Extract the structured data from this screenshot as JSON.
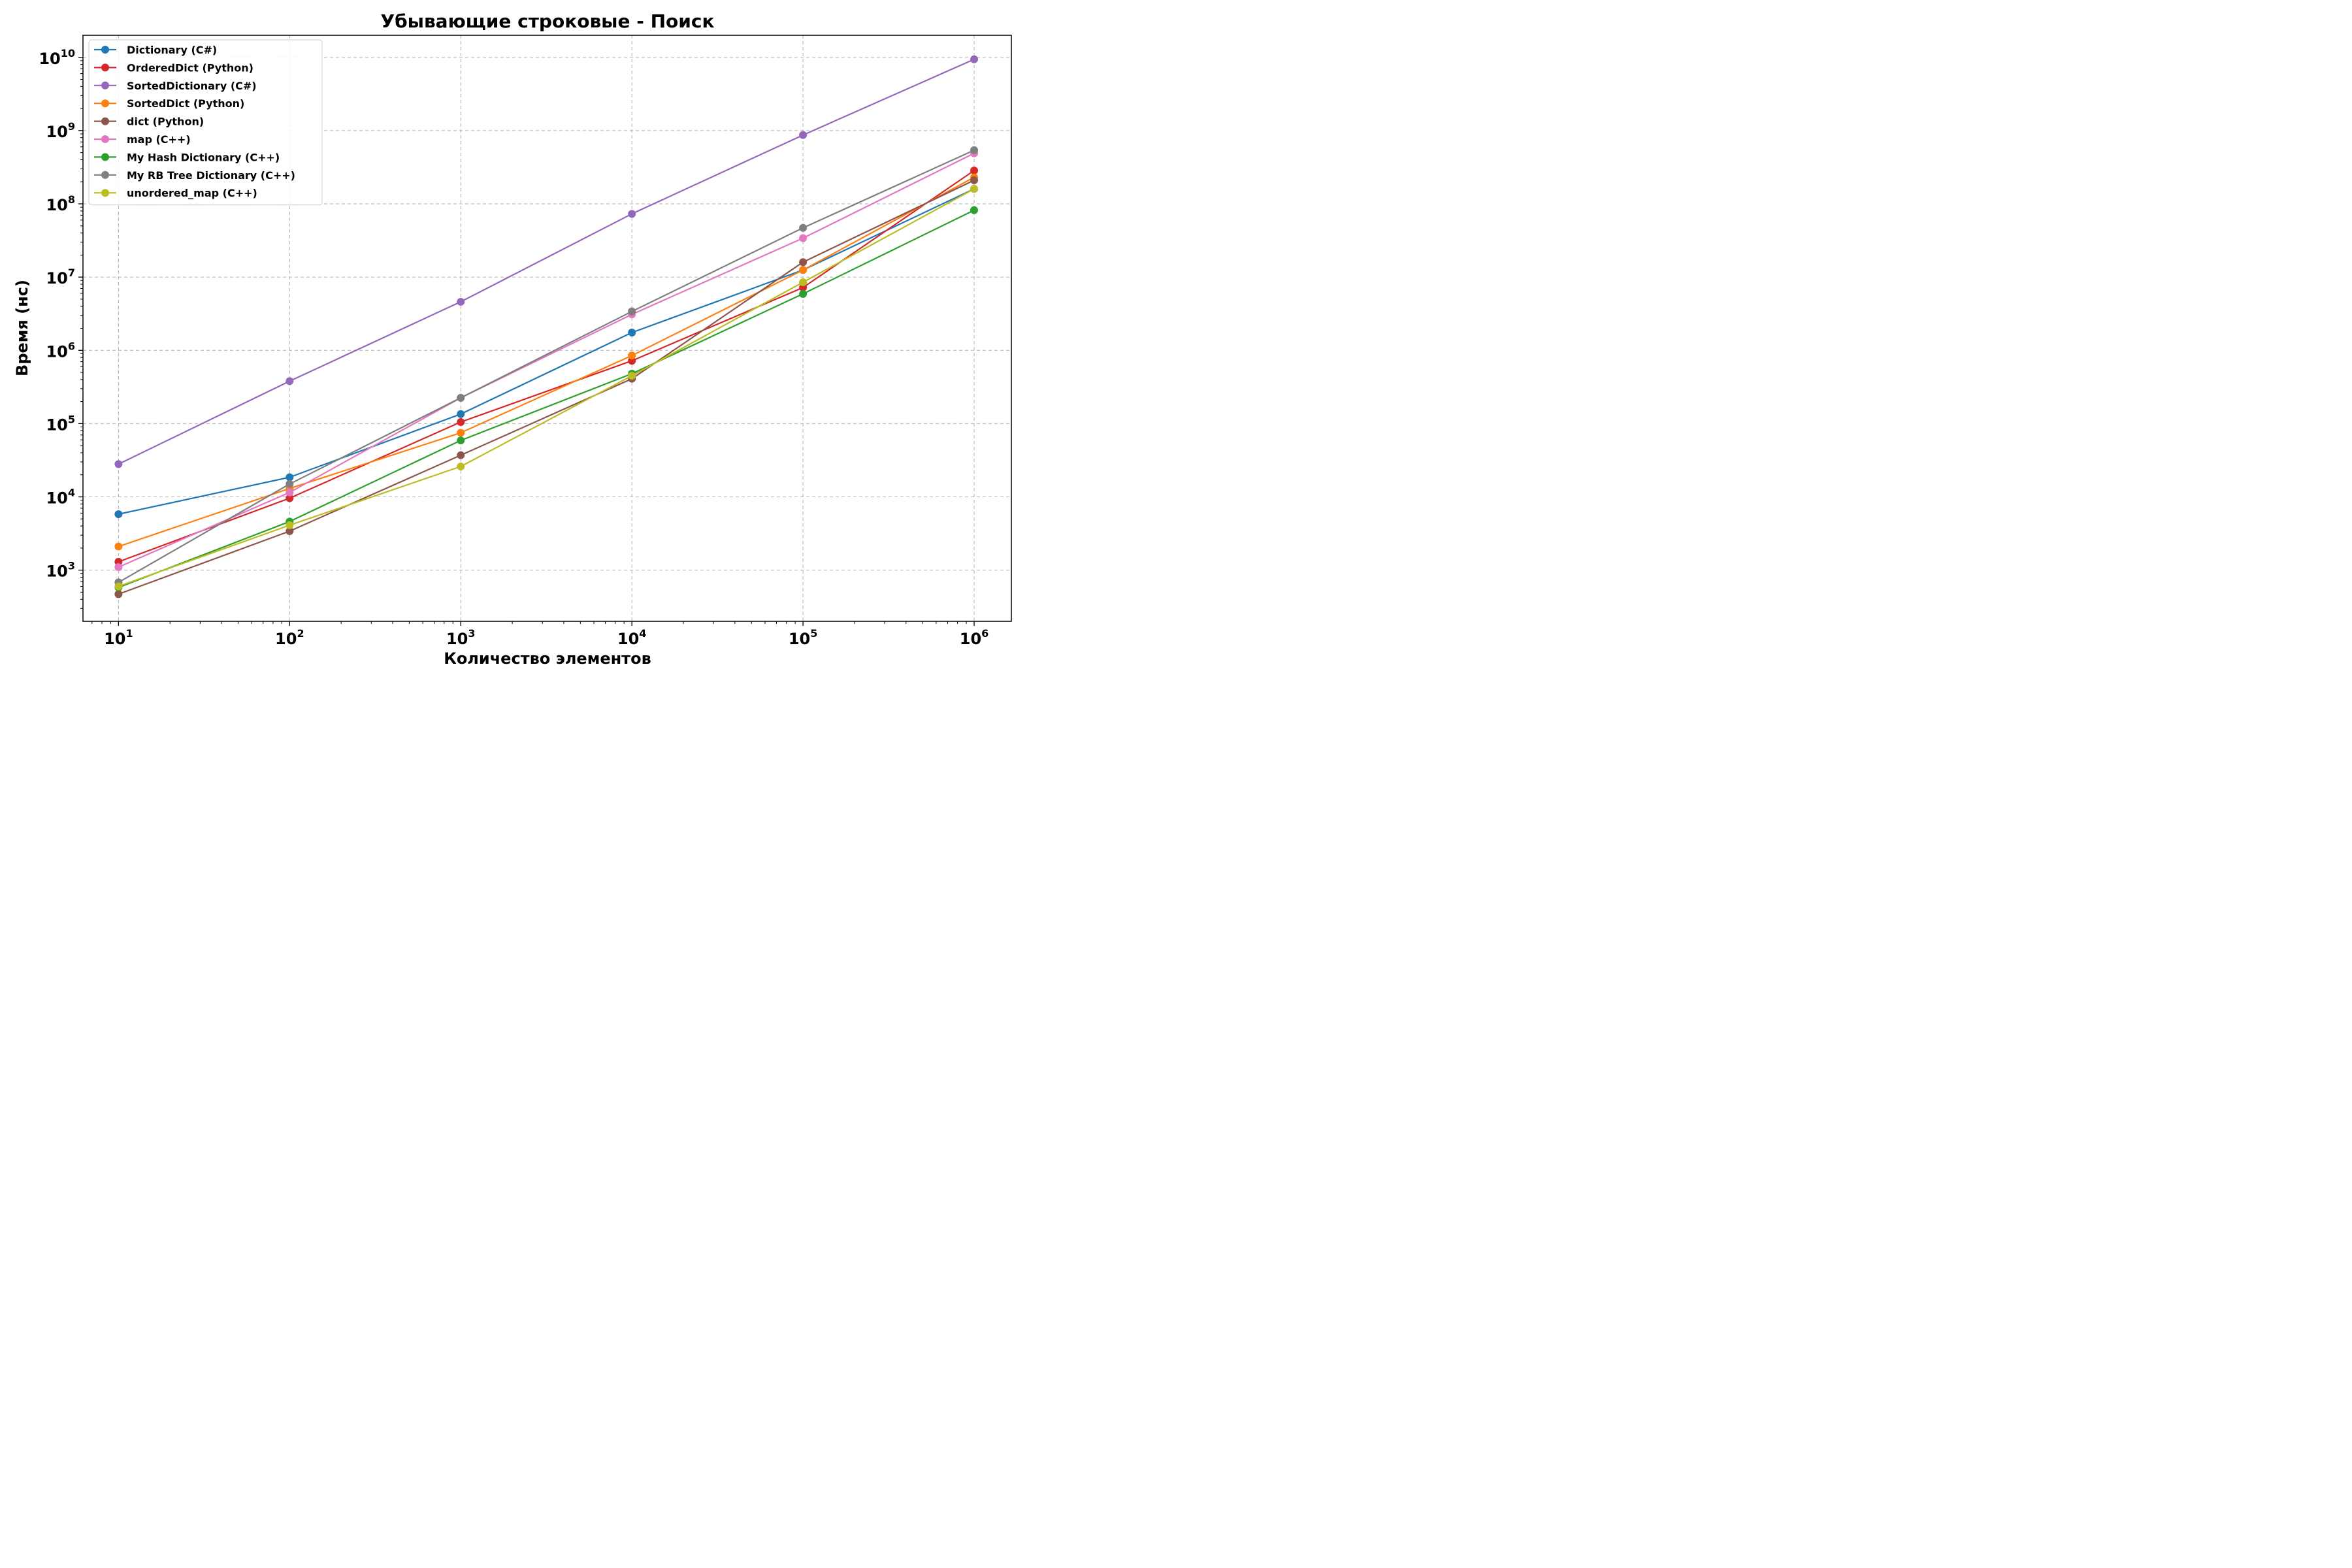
{
  "chart_data": {
    "type": "line",
    "title": "Убывающие строковые - Поиск",
    "xlabel": "Количество элементов",
    "ylabel": "Время (нс)",
    "xscale": "log",
    "yscale": "log",
    "xlim": [
      6.2,
      1650000
    ],
    "ylim": [
      200,
      20000000000
    ],
    "x": [
      10,
      100,
      1000,
      10000,
      100000,
      1000000
    ],
    "x_ticks": [
      {
        "value": 10,
        "base": "10",
        "exp": "1"
      },
      {
        "value": 100,
        "base": "10",
        "exp": "2"
      },
      {
        "value": 1000,
        "base": "10",
        "exp": "3"
      },
      {
        "value": 10000,
        "base": "10",
        "exp": "4"
      },
      {
        "value": 100000,
        "base": "10",
        "exp": "5"
      },
      {
        "value": 1000000,
        "base": "10",
        "exp": "6"
      }
    ],
    "y_ticks": [
      {
        "value": 1000,
        "base": "10",
        "exp": "3"
      },
      {
        "value": 10000,
        "base": "10",
        "exp": "4"
      },
      {
        "value": 100000,
        "base": "10",
        "exp": "5"
      },
      {
        "value": 1000000,
        "base": "10",
        "exp": "6"
      },
      {
        "value": 10000000,
        "base": "10",
        "exp": "7"
      },
      {
        "value": 100000000,
        "base": "10",
        "exp": "8"
      },
      {
        "value": 1000000000,
        "base": "10",
        "exp": "9"
      },
      {
        "value": 10000000000,
        "base": "10",
        "exp": "10"
      }
    ],
    "grid": true,
    "legend_position": "top-left",
    "series": [
      {
        "name": "Dictionary (C#)",
        "color": "#1f77b4",
        "values": [
          5800,
          18500,
          135000,
          1750000,
          12500000,
          160000000
        ]
      },
      {
        "name": "OrderedDict (Python)",
        "color": "#d62728",
        "values": [
          1300,
          9600,
          105000,
          720000,
          7200000,
          285000000
        ]
      },
      {
        "name": "SortedDictionary (C#)",
        "color": "#9467bd",
        "values": [
          28000,
          380000,
          4600000,
          73000000,
          870000000,
          9400000000
        ]
      },
      {
        "name": "SortedDict (Python)",
        "color": "#ff7f0e",
        "values": [
          2100,
          13000,
          75000,
          850000,
          12500000,
          230000000
        ]
      },
      {
        "name": "dict (Python)",
        "color": "#8c564b",
        "values": [
          470,
          3400,
          37000,
          410000,
          16000000,
          210000000
        ]
      },
      {
        "name": "map (C++)",
        "color": "#e377c2",
        "values": [
          1100,
          11500,
          225000,
          3100000,
          34000000,
          490000000
        ]
      },
      {
        "name": "My Hash Dictionary (C++)",
        "color": "#2ca02c",
        "values": [
          580,
          4600,
          59000,
          480000,
          5900000,
          82000000
        ]
      },
      {
        "name": "My RB Tree Dictionary (C++)",
        "color": "#7f7f7f",
        "values": [
          680,
          15000,
          225000,
          3400000,
          47000000,
          540000000
        ]
      },
      {
        "name": "unordered_map (C++)",
        "color": "#bcbd22",
        "values": [
          600,
          4100,
          26000,
          450000,
          8500000,
          160000000
        ]
      }
    ]
  }
}
